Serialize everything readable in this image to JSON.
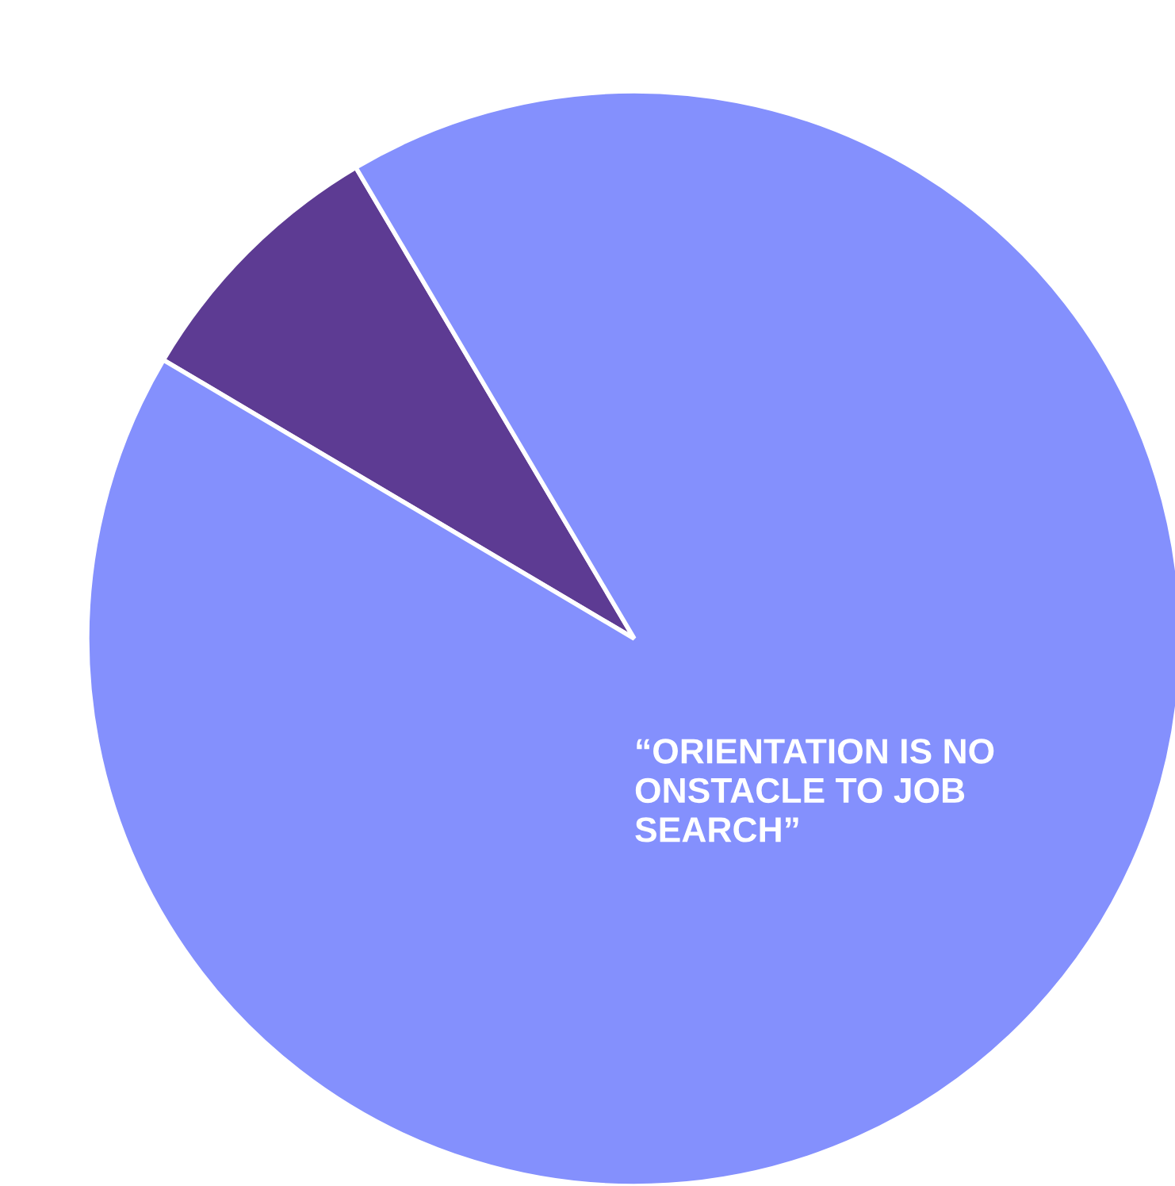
{
  "chart_data": {
    "type": "pie",
    "categories": [
      null,
      null
    ],
    "values": [
      8,
      92
    ],
    "colors": [
      "#5d3b93",
      "#8490fd"
    ],
    "annotations": [
      "“ORIENTATION IS NO\nONSTACLE TO JOB\nSEARCH”"
    ]
  }
}
